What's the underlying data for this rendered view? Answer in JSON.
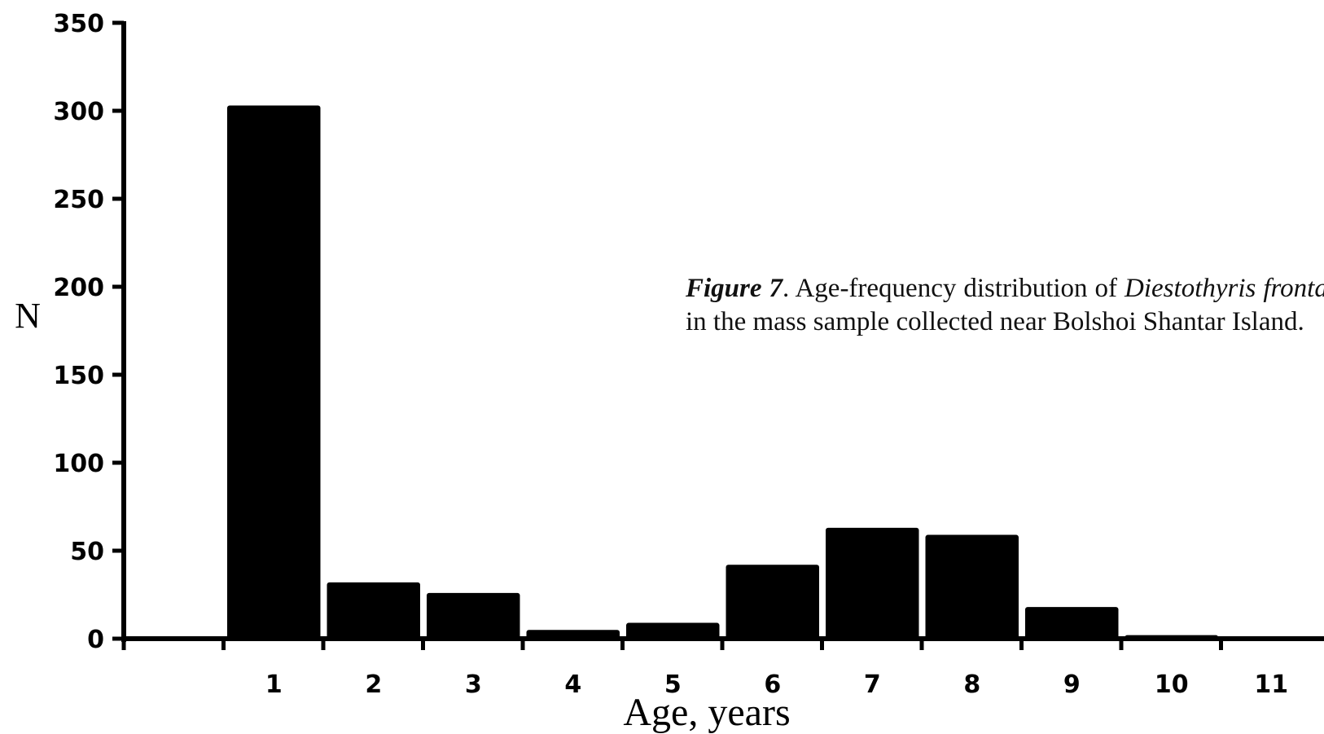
{
  "chart_data": {
    "type": "bar",
    "categories": [
      "1",
      "2",
      "3",
      "4",
      "5",
      "6",
      "7",
      "8",
      "9",
      "10",
      "11"
    ],
    "values": [
      303,
      32,
      26,
      5,
      9,
      42,
      63,
      59,
      18,
      2,
      0
    ],
    "xlabel": "Age, years",
    "ylabel": "N",
    "ylim": [
      0,
      350
    ],
    "yticks": [
      0,
      50,
      100,
      150,
      200,
      250,
      300,
      350
    ],
    "grid": false,
    "bar_color": "#000000"
  },
  "caption": {
    "figure_label": "Figure 7",
    "text_before_species": ". Age-frequency distribution of ",
    "species": "Diestothyris frontalis",
    "text_after_species": " in the mass sample collected near Bolshoi Shantar Island."
  }
}
